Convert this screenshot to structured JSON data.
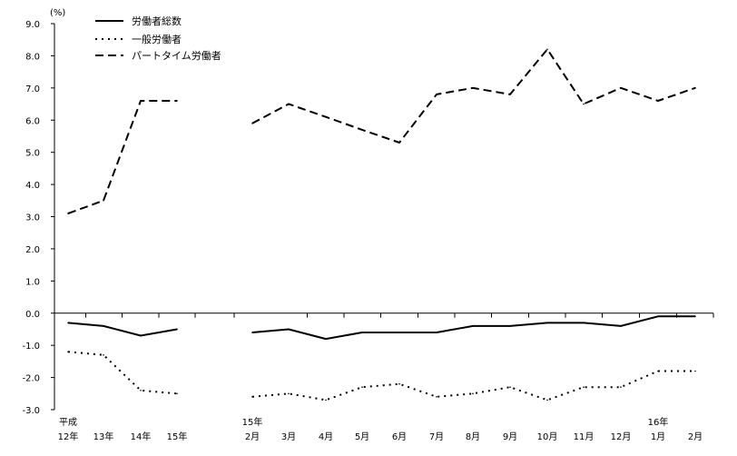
{
  "chart_data": {
    "type": "line",
    "unit_label": "(%)",
    "ylim": [
      -3,
      9
    ],
    "y_ticks": [
      "9.0",
      "8.0",
      "7.0",
      "6.0",
      "5.0",
      "4.0",
      "3.0",
      "2.0",
      "1.0",
      "0.0",
      "-1.0",
      "-2.0",
      "-3.0"
    ],
    "x_tick_labels": [
      [
        "平成",
        "12年"
      ],
      [
        "",
        "13年"
      ],
      [
        "",
        "14年"
      ],
      [
        "",
        "15年"
      ],
      [
        "15年",
        "2月"
      ],
      [
        "",
        "3月"
      ],
      [
        "",
        "4月"
      ],
      [
        "",
        "5月"
      ],
      [
        "",
        "6月"
      ],
      [
        "",
        "7月"
      ],
      [
        "",
        "8月"
      ],
      [
        "",
        "9月"
      ],
      [
        "",
        "10月"
      ],
      [
        "",
        "11月"
      ],
      [
        "",
        "12月"
      ],
      [
        "16年",
        "1月"
      ],
      [
        "",
        "2月"
      ]
    ],
    "annual_categories": [
      "平成12年",
      "13年",
      "14年",
      "15年"
    ],
    "monthly_categories": [
      "15年2月",
      "3月",
      "4月",
      "5月",
      "6月",
      "7月",
      "8月",
      "9月",
      "10月",
      "11月",
      "12月",
      "16年1月",
      "2月"
    ],
    "series": [
      {
        "name": "労働者総数",
        "style": "solid",
        "annual": [
          -0.3,
          -0.4,
          -0.7,
          -0.5
        ],
        "monthly": [
          -0.6,
          -0.5,
          -0.8,
          -0.6,
          -0.6,
          -0.6,
          -0.4,
          -0.4,
          -0.3,
          -0.3,
          -0.4,
          -0.1,
          -0.1
        ]
      },
      {
        "name": "一般労働者",
        "style": "dotted",
        "annual": [
          -1.2,
          -1.3,
          -2.4,
          -2.5
        ],
        "monthly": [
          -2.6,
          -2.5,
          -2.7,
          -2.3,
          -2.2,
          -2.6,
          -2.5,
          -2.3,
          -2.7,
          -2.3,
          -2.3,
          -1.8,
          -1.8
        ]
      },
      {
        "name": "パートタイム労働者",
        "style": "dashed",
        "annual": [
          3.1,
          3.5,
          6.6,
          6.6
        ],
        "monthly": [
          5.9,
          6.5,
          6.1,
          5.7,
          5.3,
          6.8,
          7.0,
          6.8,
          8.2,
          6.5,
          7.0,
          6.6,
          7.0
        ]
      }
    ],
    "grid": false,
    "legend_position": "top-left"
  }
}
